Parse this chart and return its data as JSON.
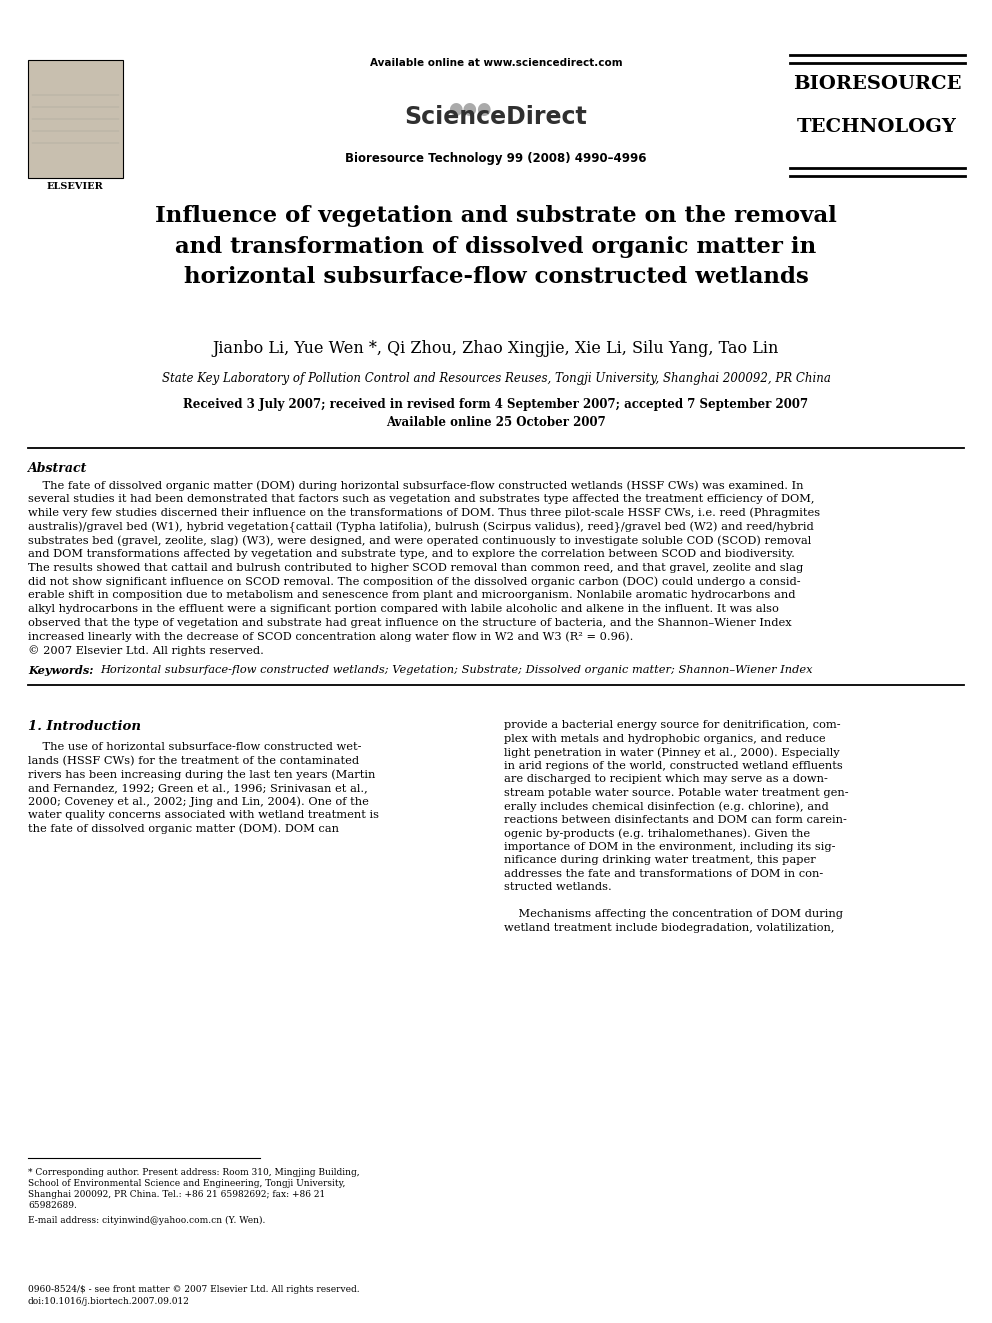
{
  "bg_color": "#ffffff",
  "header": {
    "available_online": "Available online at www.sciencedirect.com",
    "science_direct": "ScienceDirect",
    "journal_info": "Bioresource Technology 99 (2008) 4990–4996",
    "elsevier": "ELSEVIER",
    "bioresource_line1": "BIORESOURCE",
    "bioresource_line2": "TECHNOLOGY"
  },
  "title": "Influence of vegetation and substrate on the removal\nand transformation of dissolved organic matter in\nhorizontal subsurface-flow constructed wetlands",
  "authors": "Jianbo Li, Yue Wen *, Qi Zhou, Zhao Xingjie, Xie Li, Silu Yang, Tao Lin",
  "affiliation": "State Key Laboratory of Pollution Control and Resources Reuses, Tongji University, Shanghai 200092, PR China",
  "received": "Received 3 July 2007; received in revised form 4 September 2007; accepted 7 September 2007",
  "available": "Available online 25 October 2007",
  "abstract_label": "Abstract",
  "abstract_text": [
    "    The fate of dissolved organic matter (DOM) during horizontal subsurface-flow constructed wetlands (HSSF CWs) was examined. In",
    "several studies it had been demonstrated that factors such as vegetation and substrates type affected the treatment efficiency of DOM,",
    "while very few studies discerned their influence on the transformations of DOM. Thus three pilot-scale HSSF CWs, i.e. reed (Phragmites",
    "australis)/gravel bed (W1), hybrid vegetation{cattail (Typha latifolia), bulrush (Scirpus validus), reed}/gravel bed (W2) and reed/hybrid",
    "substrates bed (gravel, zeolite, slag) (W3), were designed, and were operated continuously to investigate soluble COD (SCOD) removal",
    "and DOM transformations affected by vegetation and substrate type, and to explore the correlation between SCOD and biodiversity.",
    "The results showed that cattail and bulrush contributed to higher SCOD removal than common reed, and that gravel, zeolite and slag",
    "did not show significant influence on SCOD removal. The composition of the dissolved organic carbon (DOC) could undergo a consid-",
    "erable shift in composition due to metabolism and senescence from plant and microorganism. Nonlabile aromatic hydrocarbons and",
    "alkyl hydrocarbons in the effluent were a significant portion compared with labile alcoholic and alkene in the influent. It was also",
    "observed that the type of vegetation and substrate had great influence on the structure of bacteria, and the Shannon–Wiener Index",
    "increased linearly with the decrease of SCOD concentration along water flow in W2 and W3 (R² = 0.96).",
    "© 2007 Elsevier Ltd. All rights reserved."
  ],
  "keywords_label": "Keywords:",
  "keywords_text": "Horizontal subsurface-flow constructed wetlands; Vegetation; Substrate; Dissolved organic matter; Shannon–Wiener Index",
  "section1_title": "1. Introduction",
  "intro_col1": [
    "    The use of horizontal subsurface-flow constructed wet-",
    "lands (HSSF CWs) for the treatment of the contaminated",
    "rivers has been increasing during the last ten years (Martin",
    "and Fernandez, 1992; Green et al., 1996; Srinivasan et al.,",
    "2000; Coveney et al., 2002; Jing and Lin, 2004). One of the",
    "water quality concerns associated with wetland treatment is",
    "the fate of dissolved organic matter (DOM). DOM can"
  ],
  "intro_col2": [
    "provide a bacterial energy source for denitrification, com-",
    "plex with metals and hydrophobic organics, and reduce",
    "light penetration in water (Pinney et al., 2000). Especially",
    "in arid regions of the world, constructed wetland effluents",
    "are discharged to recipient which may serve as a down-",
    "stream potable water source. Potable water treatment gen-",
    "erally includes chemical disinfection (e.g. chlorine), and",
    "reactions between disinfectants and DOM can form carein-",
    "ogenic by-products (e.g. trihalomethanes). Given the",
    "importance of DOM in the environment, including its sig-",
    "nificance during drinking water treatment, this paper",
    "addresses the fate and transformations of DOM in con-",
    "structed wetlands.",
    "",
    "    Mechanisms affecting the concentration of DOM during",
    "wetland treatment include biodegradation, volatilization,"
  ],
  "footnote_line": "* Corresponding author. Present address: Room 310, Mingjing Building,",
  "footnote_lines": [
    "* Corresponding author. Present address: Room 310, Mingjing Building,",
    "School of Environmental Science and Engineering, Tongji University,",
    "Shanghai 200092, PR China. Tel.: +86 21 65982692; fax: +86 21",
    "65982689."
  ],
  "footnote2": "E-mail address: cityinwind@yahoo.com.cn (Y. Wen).",
  "footer_lines": [
    "0960-8524/$ - see front matter © 2007 Elsevier Ltd. All rights reserved.",
    "doi:10.1016/j.biortech.2007.09.012"
  ]
}
